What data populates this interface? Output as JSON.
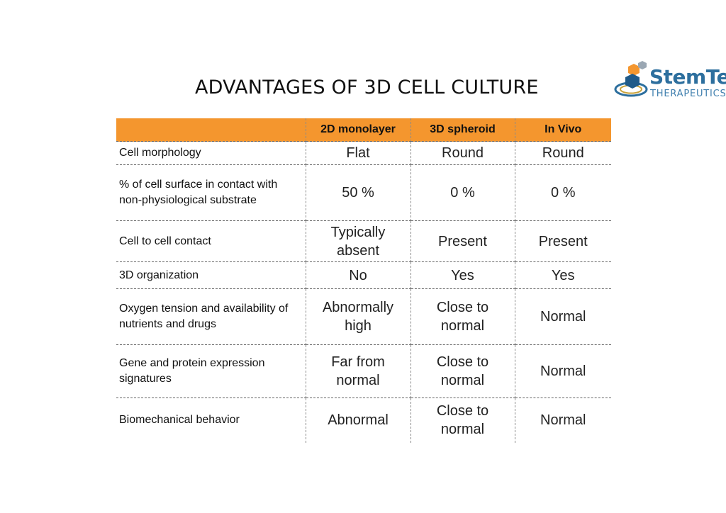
{
  "title": "ADVANTAGES OF 3D CELL CULTURE",
  "logo": {
    "word": "StemTek",
    "sub": "THERAPEUTICS",
    "colors": {
      "primary": "#2d6f9e",
      "accent": "#f4962e"
    }
  },
  "table": {
    "header_color": "#f4962e",
    "headers": [
      "",
      "2D monolayer",
      "3D spheroid",
      "In Vivo"
    ],
    "rows": [
      {
        "label": "Cell morphology",
        "cells": [
          "Flat",
          "Round",
          "Round"
        ]
      },
      {
        "label": "% of cell surface in contact with non-physiological substrate",
        "cells": [
          "50 %",
          "0 %",
          "0 %"
        ]
      },
      {
        "label": "Cell to cell contact",
        "cells": [
          "Typically absent",
          "Present",
          "Present"
        ]
      },
      {
        "label": "3D organization",
        "cells": [
          "No",
          "Yes",
          "Yes"
        ]
      },
      {
        "label": "Oxygen tension and availability of nutrients and drugs",
        "cells": [
          "Abnormally high",
          "Close to normal",
          "Normal"
        ]
      },
      {
        "label": "Gene and protein expression signatures",
        "cells": [
          "Far from normal",
          "Close to normal",
          "Normal"
        ]
      },
      {
        "label": "Biomechanical behavior",
        "cells": [
          "Abnormal",
          "Close to normal",
          "Normal"
        ]
      }
    ]
  }
}
